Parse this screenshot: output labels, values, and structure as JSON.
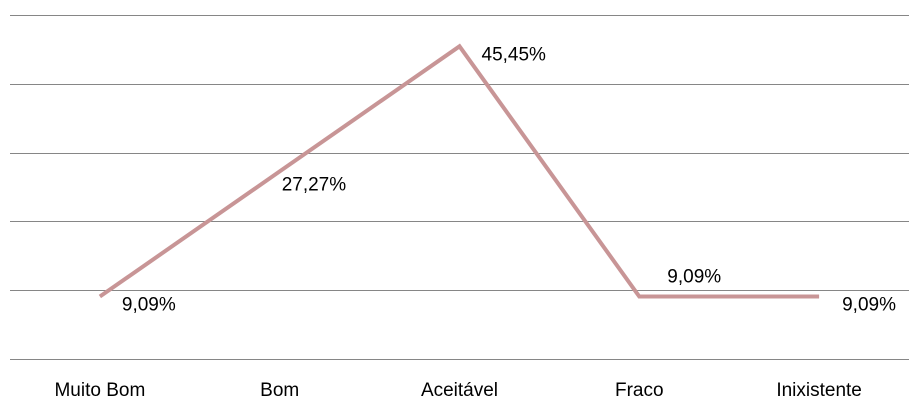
{
  "chart_data": {
    "type": "line",
    "categories": [
      "Muito Bom",
      "Bom",
      "Aceitável",
      "Fraco",
      "Inixistente"
    ],
    "series": [
      {
        "values": [
          9.09,
          27.27,
          45.45,
          9.09,
          9.09
        ],
        "data_labels": [
          "9,09%",
          "27,27%",
          "45,45%",
          "9,09%",
          "9,09%"
        ],
        "color": "#C89596"
      }
    ],
    "ylim": [
      0,
      50
    ],
    "y_major_step": 10,
    "grid": true,
    "legend": "none",
    "title": "",
    "xlabel": "",
    "ylabel": ""
  }
}
